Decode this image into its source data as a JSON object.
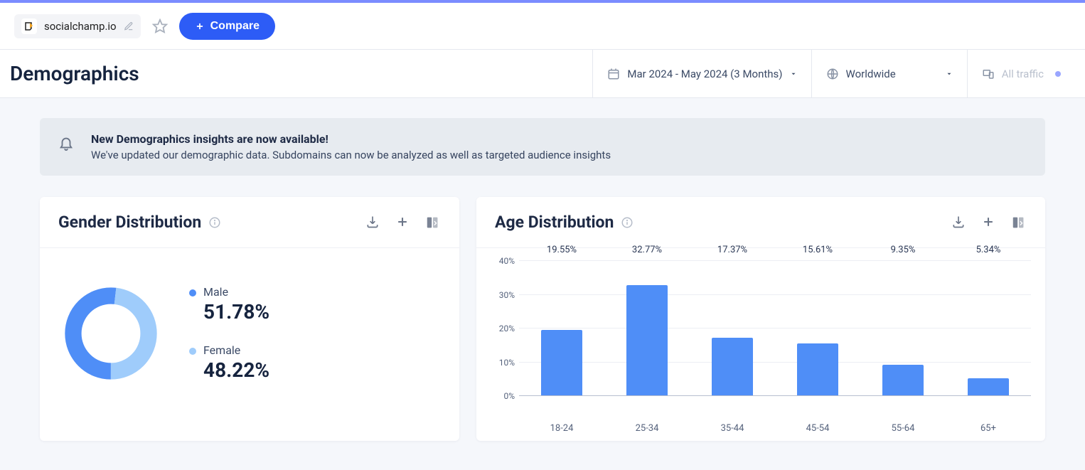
{
  "topbar": {
    "site": "socialchamp.io",
    "compare_label": "Compare"
  },
  "header": {
    "title": "Demographics",
    "date_range": "Mar 2024 - May 2024 (3 Months)",
    "region": "Worldwide",
    "traffic": "All traffic"
  },
  "alert": {
    "title": "New Demographics insights are now available!",
    "body": "We've updated our demographic data. Subdomains can now be analyzed as well as targeted audience insights"
  },
  "gender_card": {
    "title": "Gender Distribution",
    "type": "donut",
    "series": [
      {
        "label": "Male",
        "value": 51.78,
        "value_display": "51.78%",
        "color": "#4f8ef7"
      },
      {
        "label": "Female",
        "value": 48.22,
        "value_display": "48.22%",
        "color": "#9fccfb"
      }
    ],
    "donut_thickness": 30,
    "background_color": "#ffffff"
  },
  "age_card": {
    "title": "Age Distribution",
    "type": "bar",
    "categories": [
      "18-24",
      "25-34",
      "35-44",
      "45-54",
      "55-64",
      "65+"
    ],
    "values": [
      19.55,
      32.77,
      17.37,
      15.61,
      9.35,
      5.34
    ],
    "value_displays": [
      "19.55%",
      "32.77%",
      "17.37%",
      "15.61%",
      "9.35%",
      "5.34%"
    ],
    "bar_color": "#4f8ef7",
    "ylim": [
      0,
      40
    ],
    "ytick_step": 10,
    "grid_color": "#eceef4",
    "baseline_color": "#b7bfcf",
    "background_color": "#ffffff"
  },
  "colors": {
    "accent": "#7b8cff",
    "primary_button": "#2d5cf6",
    "text_dark": "#16243f"
  }
}
